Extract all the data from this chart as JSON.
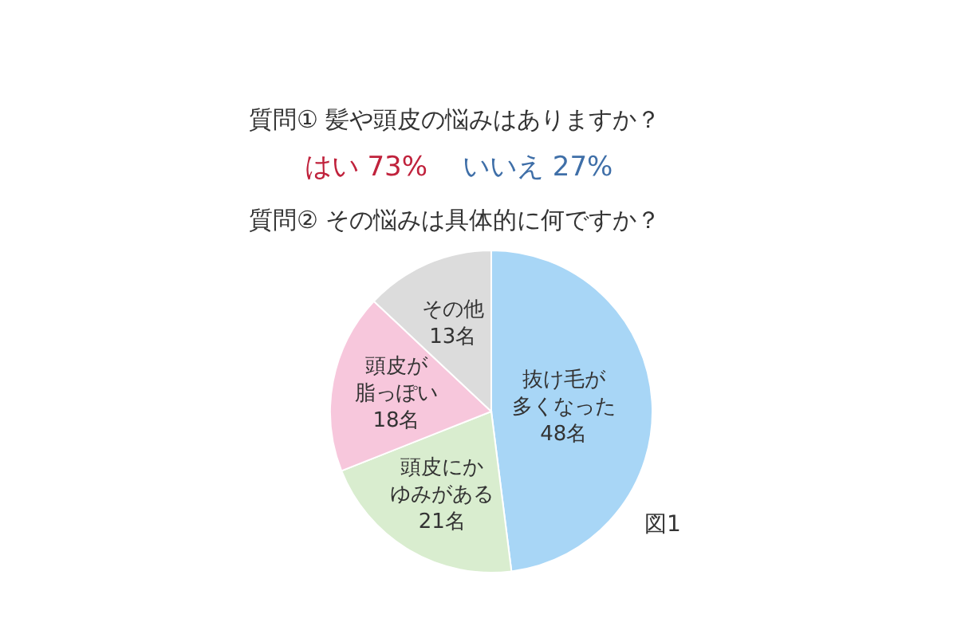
{
  "chart_data": {
    "type": "pie",
    "title": "質問① 髪や頭皮の悩みはありますか？",
    "subtitle": "質問② その悩みは具体的に何ですか？",
    "annotations": [
      "はい 73%",
      "いいえ 27%",
      "図1"
    ],
    "categories": [
      "抜け毛が多くなった",
      "頭皮にかゆみがある",
      "頭皮が脂っぽい",
      "その他"
    ],
    "values": [
      48,
      21,
      18,
      13
    ],
    "colors": [
      "#a8d6f6",
      "#d9edcf",
      "#f7c7dc",
      "#dcdcdc"
    ],
    "value_labels": [
      "48名",
      "21名",
      "18名",
      "13名"
    ]
  }
}
